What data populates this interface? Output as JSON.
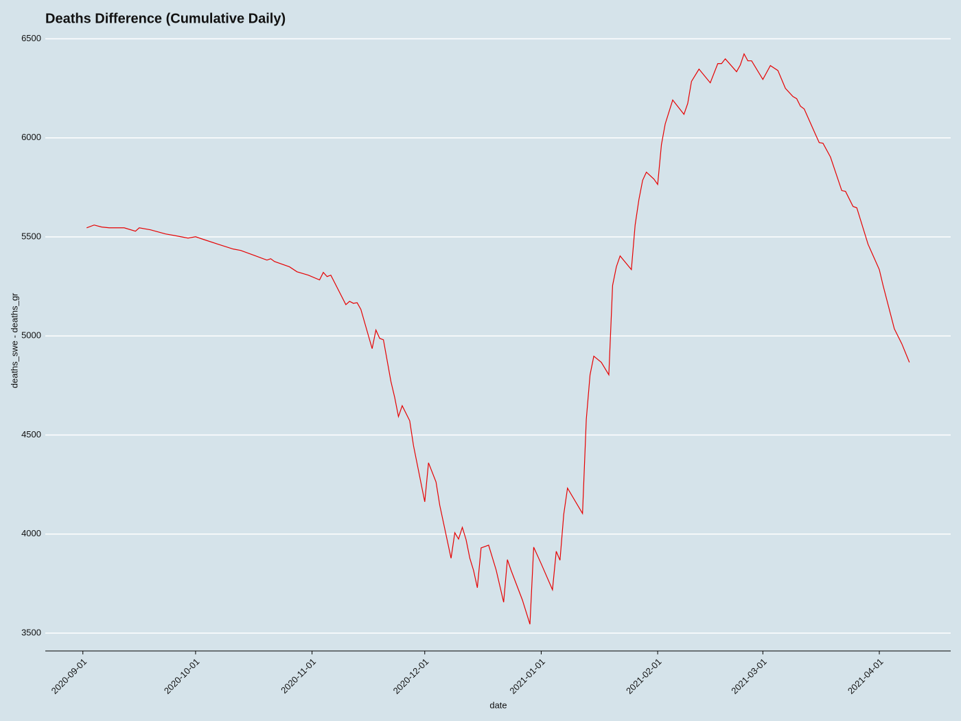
{
  "chart_data": {
    "type": "line",
    "title": "Deaths Difference (Cumulative Daily)",
    "x_label": "date",
    "y_label": "deaths_swe - deaths_gr",
    "color": "#e60000",
    "grid": true,
    "x": [
      "2020-09-02",
      "2020-09-04",
      "2020-09-06",
      "2020-09-08",
      "2020-09-12",
      "2020-09-15",
      "2020-09-16",
      "2020-09-19",
      "2020-09-23",
      "2020-09-26",
      "2020-09-29",
      "2020-10-01",
      "2020-10-03",
      "2020-10-07",
      "2020-10-11",
      "2020-10-13",
      "2020-10-17",
      "2020-10-20",
      "2020-10-21",
      "2020-10-22",
      "2020-10-26",
      "2020-10-28",
      "2020-10-31",
      "2020-11-03",
      "2020-11-04",
      "2020-11-05",
      "2020-11-06",
      "2020-11-10",
      "2020-11-11",
      "2020-11-12",
      "2020-11-13",
      "2020-11-14",
      "2020-11-17",
      "2020-11-18",
      "2020-11-19",
      "2020-11-20",
      "2020-11-22",
      "2020-11-23",
      "2020-11-24",
      "2020-11-25",
      "2020-11-27",
      "2020-11-28",
      "2020-12-01",
      "2020-12-02",
      "2020-12-04",
      "2020-12-05",
      "2020-12-08",
      "2020-12-09",
      "2020-12-10",
      "2020-12-11",
      "2020-12-12",
      "2020-12-13",
      "2020-12-14",
      "2020-12-15",
      "2020-12-16",
      "2020-12-18",
      "2020-12-20",
      "2020-12-22",
      "2020-12-23",
      "2020-12-24",
      "2020-12-27",
      "2020-12-29",
      "2020-12-30",
      "2021-01-01",
      "2021-01-04",
      "2021-01-05",
      "2021-01-06",
      "2021-01-07",
      "2021-01-08",
      "2021-01-12",
      "2021-01-13",
      "2021-01-14",
      "2021-01-15",
      "2021-01-17",
      "2021-01-19",
      "2021-01-20",
      "2021-01-21",
      "2021-01-22",
      "2021-01-25",
      "2021-01-26",
      "2021-01-27",
      "2021-01-28",
      "2021-01-29",
      "2021-01-31",
      "2021-02-01",
      "2021-02-02",
      "2021-02-03",
      "2021-02-05",
      "2021-02-08",
      "2021-02-09",
      "2021-02-10",
      "2021-02-12",
      "2021-02-15",
      "2021-02-17",
      "2021-02-18",
      "2021-02-19",
      "2021-02-22",
      "2021-02-23",
      "2021-02-24",
      "2021-02-25",
      "2021-02-26",
      "2021-03-01",
      "2021-03-03",
      "2021-03-05",
      "2021-03-07",
      "2021-03-09",
      "2021-03-10",
      "2021-03-11",
      "2021-03-12",
      "2021-03-15",
      "2021-03-16",
      "2021-03-17",
      "2021-03-19",
      "2021-03-22",
      "2021-03-23",
      "2021-03-25",
      "2021-03-26",
      "2021-03-29",
      "2021-04-01",
      "2021-04-02",
      "2021-04-05",
      "2021-04-07",
      "2021-04-09"
    ],
    "values": [
      5546,
      5560,
      5550,
      5546,
      5546,
      5529,
      5546,
      5536,
      5515,
      5505,
      5494,
      5501,
      5488,
      5463,
      5439,
      5432,
      5404,
      5383,
      5390,
      5376,
      5349,
      5324,
      5307,
      5283,
      5321,
      5300,
      5307,
      5158,
      5175,
      5165,
      5168,
      5134,
      4936,
      5030,
      4988,
      4981,
      4770,
      4690,
      4593,
      4648,
      4572,
      4447,
      4163,
      4360,
      4263,
      4145,
      3878,
      4007,
      3975,
      4034,
      3972,
      3878,
      3816,
      3729,
      3930,
      3944,
      3819,
      3656,
      3871,
      3816,
      3667,
      3545,
      3934,
      3850,
      3719,
      3913,
      3868,
      4100,
      4232,
      4104,
      4579,
      4804,
      4898,
      4867,
      4804,
      5255,
      5349,
      5404,
      5335,
      5560,
      5688,
      5786,
      5827,
      5792,
      5765,
      5966,
      6070,
      6191,
      6119,
      6174,
      6285,
      6347,
      6278,
      6375,
      6375,
      6399,
      6334,
      6368,
      6424,
      6389,
      6389,
      6295,
      6365,
      6340,
      6250,
      6209,
      6198,
      6160,
      6146,
      6018,
      5976,
      5973,
      5903,
      5734,
      5730,
      5654,
      5647,
      5463,
      5335,
      5255,
      5036,
      4960,
      4867
    ],
    "xlim": [
      "2020-08-22",
      "2021-04-20"
    ],
    "xticks": [
      "2020-09-01",
      "2020-10-01",
      "2020-11-01",
      "2020-12-01",
      "2021-01-01",
      "2021-02-01",
      "2021-03-01",
      "2021-04-01"
    ],
    "ylim": [
      3410,
      6540
    ],
    "yticks": [
      3500,
      4000,
      4500,
      5000,
      5500,
      6000,
      6500
    ]
  }
}
